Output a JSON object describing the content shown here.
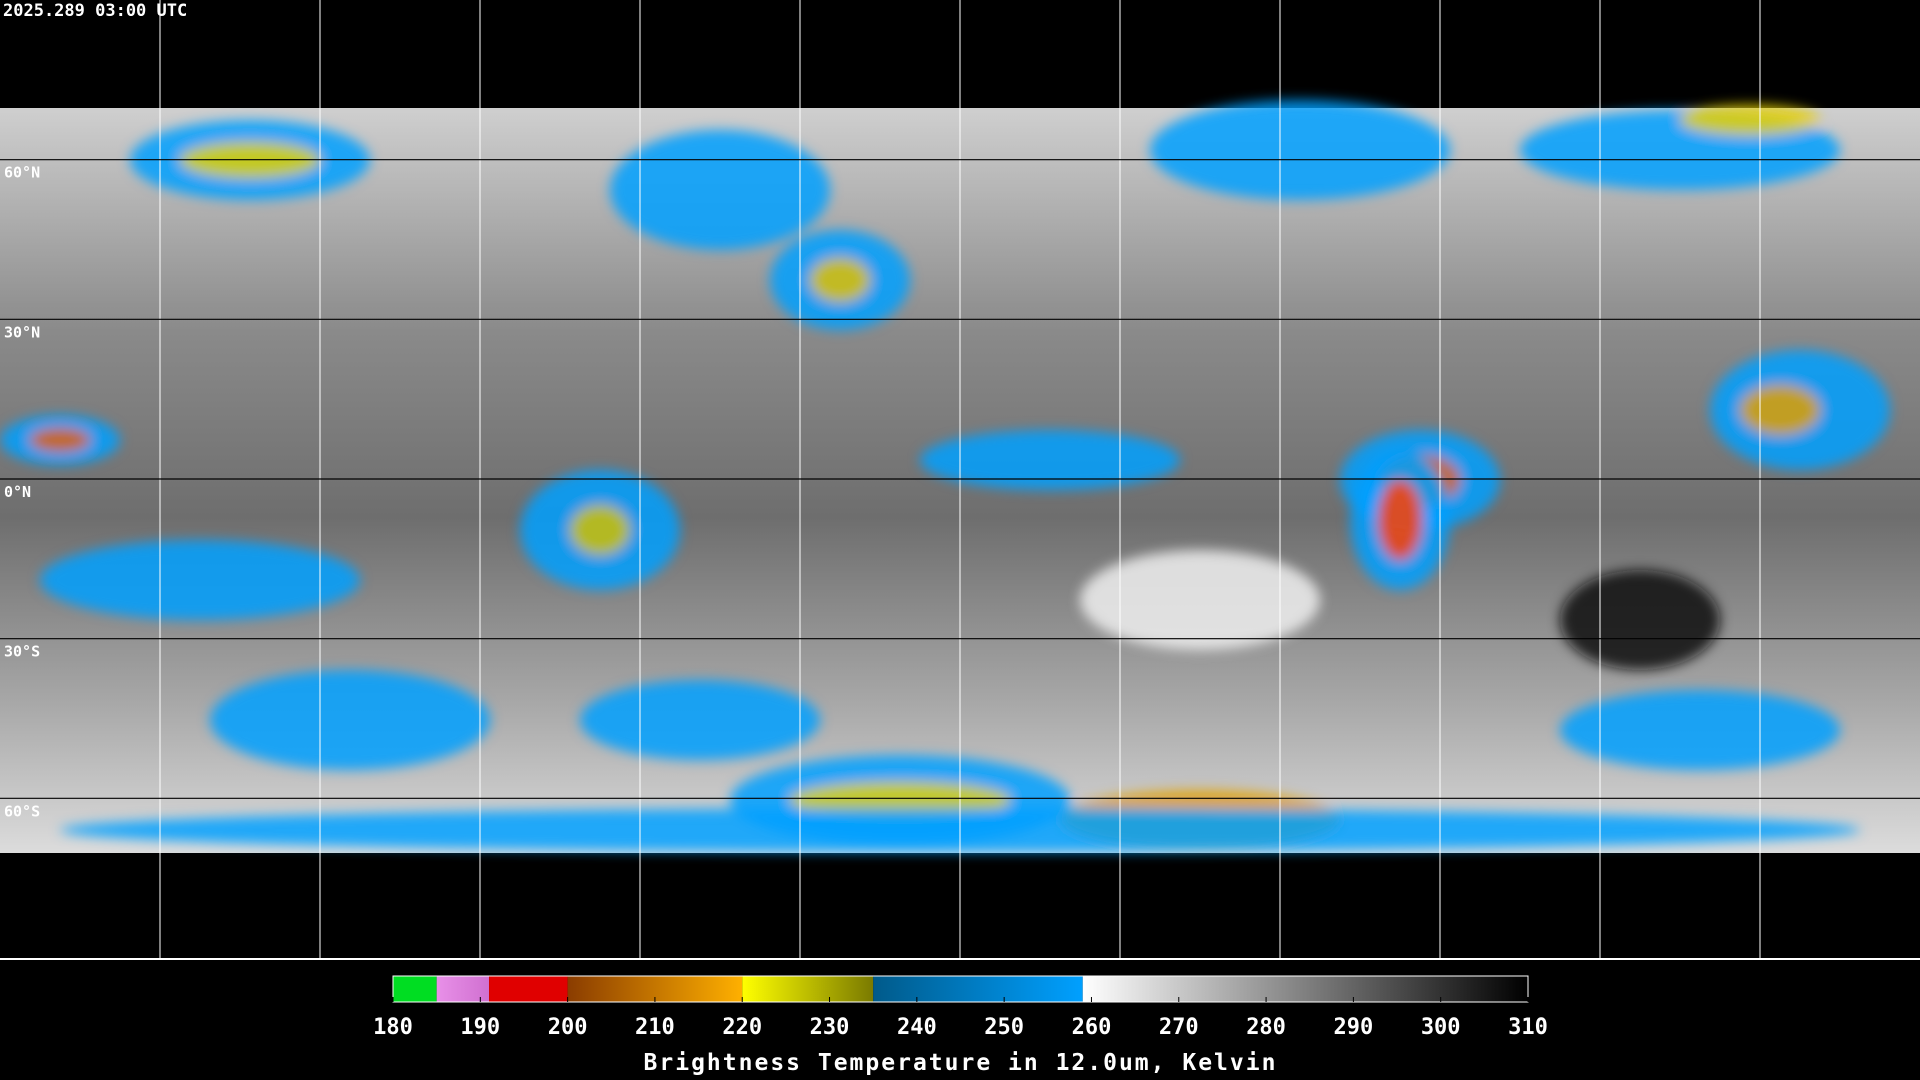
{
  "header": {
    "timestamp": "2025.289 03:00 UTC"
  },
  "map": {
    "lat_lines": [
      {
        "value": 60,
        "label": "60°N"
      },
      {
        "value": 30,
        "label": "30°N"
      },
      {
        "value": 0,
        "label": "0°N"
      },
      {
        "value": -30,
        "label": "30°S"
      },
      {
        "value": -60,
        "label": "60°S"
      }
    ]
  },
  "colorbar": {
    "range": [
      180,
      310
    ],
    "ticks": [
      180,
      190,
      200,
      210,
      220,
      230,
      240,
      250,
      260,
      270,
      280,
      290,
      300,
      310
    ],
    "segments": [
      {
        "from": 180,
        "to": 185,
        "colors": [
          "#00dd22",
          "#00dd22"
        ]
      },
      {
        "from": 185,
        "to": 191,
        "colors": [
          "#e890e8",
          "#d070d0"
        ]
      },
      {
        "from": 191,
        "to": 200,
        "colors": [
          "#e00000",
          "#e00000"
        ]
      },
      {
        "from": 200,
        "to": 220,
        "colors": [
          "#8a3c00",
          "#ffb000"
        ]
      },
      {
        "from": 220,
        "to": 235,
        "colors": [
          "#ffff00",
          "#7a7a00"
        ]
      },
      {
        "from": 235,
        "to": 259,
        "colors": [
          "#005a8a",
          "#00a0ff"
        ]
      },
      {
        "from": 259,
        "to": 310,
        "colors": [
          "#ffffff",
          "#000000"
        ]
      }
    ],
    "label": "Brightness Temperature in 12.0um, Kelvin"
  }
}
